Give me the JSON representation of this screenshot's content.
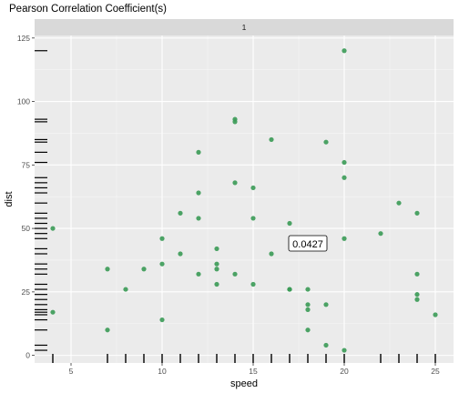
{
  "chart_data": {
    "type": "scatter",
    "title": "Pearson Correlation Coefficient(s)",
    "xlabel": "speed",
    "ylabel": "dist",
    "facet_label": "1",
    "annotation": "0.0427",
    "xlim": [
      3,
      26
    ],
    "ylim": [
      -3,
      126
    ],
    "x_ticks": [
      5,
      10,
      15,
      20,
      25
    ],
    "y_ticks": [
      0,
      25,
      50,
      75,
      100,
      125
    ],
    "grid": true,
    "rug": true,
    "point_color": "#3a9a55",
    "panel_bg": "#ebebeb",
    "strip_bg": "#d9d9d9",
    "points": [
      [
        4,
        50
      ],
      [
        4,
        17
      ],
      [
        7,
        10
      ],
      [
        7,
        34
      ],
      [
        8,
        26
      ],
      [
        9,
        34
      ],
      [
        10,
        46
      ],
      [
        10,
        36
      ],
      [
        10,
        14
      ],
      [
        11,
        40
      ],
      [
        11,
        56
      ],
      [
        12,
        80
      ],
      [
        12,
        64
      ],
      [
        12,
        54
      ],
      [
        12,
        32
      ],
      [
        13,
        42
      ],
      [
        13,
        36
      ],
      [
        13,
        34
      ],
      [
        13,
        28
      ],
      [
        14,
        93
      ],
      [
        14,
        92
      ],
      [
        14,
        68
      ],
      [
        14,
        32
      ],
      [
        15,
        66
      ],
      [
        15,
        54
      ],
      [
        15,
        28
      ],
      [
        16,
        85
      ],
      [
        16,
        40
      ],
      [
        17,
        52
      ],
      [
        17,
        26
      ],
      [
        17,
        26
      ],
      [
        18,
        26
      ],
      [
        18,
        20
      ],
      [
        18,
        18
      ],
      [
        18,
        10
      ],
      [
        19,
        84
      ],
      [
        19,
        20
      ],
      [
        19,
        4
      ],
      [
        20,
        120
      ],
      [
        20,
        76
      ],
      [
        20,
        70
      ],
      [
        20,
        46
      ],
      [
        20,
        2
      ],
      [
        22,
        48
      ],
      [
        23,
        60
      ],
      [
        24,
        56
      ],
      [
        24,
        32
      ],
      [
        24,
        24
      ],
      [
        24,
        22
      ],
      [
        25,
        16
      ]
    ]
  }
}
